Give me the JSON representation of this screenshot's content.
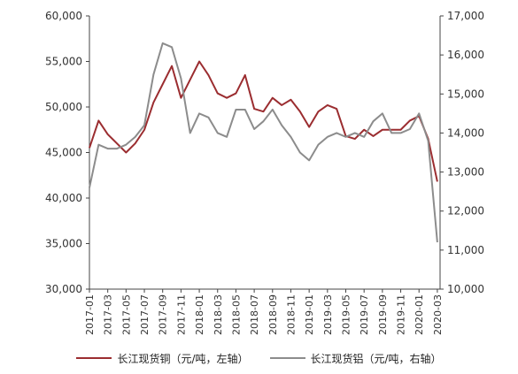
{
  "chart_data": {
    "type": "line",
    "x_ticks": [
      "2017-01",
      "2017-03",
      "2017-05",
      "2017-07",
      "2017-09",
      "2017-11",
      "2018-01",
      "2018-03",
      "2018-05",
      "2018-07",
      "2018-09",
      "2018-11",
      "2019-01",
      "2019-03",
      "2019-05",
      "2019-07",
      "2019-09",
      "2019-11",
      "2020-01",
      "2020-03"
    ],
    "y_left": {
      "min": 30000,
      "max": 60000,
      "ticks": [
        "30,000",
        "35,000",
        "40,000",
        "45,000",
        "50,000",
        "55,000",
        "60,000"
      ]
    },
    "y_right": {
      "min": 10000,
      "max": 17000,
      "ticks": [
        "10,000",
        "11,000",
        "12,000",
        "13,000",
        "14,000",
        "15,000",
        "16,000",
        "17,000"
      ]
    },
    "grid": false,
    "legend_position": "bottom",
    "series": [
      {
        "name": "长江现货铜（元/吨，左轴）",
        "axis": "left",
        "color": "#9b2d30",
        "x": [
          "2017-01",
          "2017-02",
          "2017-03",
          "2017-04",
          "2017-05",
          "2017-06",
          "2017-07",
          "2017-08",
          "2017-09",
          "2017-10",
          "2017-11",
          "2017-12",
          "2018-01",
          "2018-02",
          "2018-03",
          "2018-04",
          "2018-05",
          "2018-06",
          "2018-07",
          "2018-08",
          "2018-09",
          "2018-10",
          "2018-11",
          "2018-12",
          "2019-01",
          "2019-02",
          "2019-03",
          "2019-04",
          "2019-05",
          "2019-06",
          "2019-07",
          "2019-08",
          "2019-09",
          "2019-10",
          "2019-11",
          "2019-12",
          "2020-01",
          "2020-02",
          "2020-03"
        ],
        "values": [
          45500,
          48500,
          47000,
          46000,
          45000,
          46000,
          47500,
          50500,
          52500,
          54500,
          51000,
          53000,
          55000,
          53500,
          51500,
          51000,
          51500,
          53500,
          49800,
          49500,
          51000,
          50200,
          50800,
          49500,
          47800,
          49500,
          50200,
          49800,
          46800,
          46500,
          47500,
          46800,
          47500,
          47500,
          47500,
          48500,
          49000,
          46500,
          41800
        ]
      },
      {
        "name": "长江现货铝（元/吨，右轴）",
        "axis": "right",
        "color": "#8c8c8c",
        "x": [
          "2017-01",
          "2017-02",
          "2017-03",
          "2017-04",
          "2017-05",
          "2017-06",
          "2017-07",
          "2017-08",
          "2017-09",
          "2017-10",
          "2017-11",
          "2017-12",
          "2018-01",
          "2018-02",
          "2018-03",
          "2018-04",
          "2018-05",
          "2018-06",
          "2018-07",
          "2018-08",
          "2018-09",
          "2018-10",
          "2018-11",
          "2018-12",
          "2019-01",
          "2019-02",
          "2019-03",
          "2019-04",
          "2019-05",
          "2019-06",
          "2019-07",
          "2019-08",
          "2019-09",
          "2019-10",
          "2019-11",
          "2019-12",
          "2020-01",
          "2020-02",
          "2020-03"
        ],
        "values": [
          12600,
          13700,
          13600,
          13600,
          13700,
          13900,
          14200,
          15500,
          16300,
          16200,
          15400,
          14000,
          14500,
          14400,
          14000,
          13900,
          14600,
          14600,
          14100,
          14300,
          14600,
          14200,
          13900,
          13500,
          13300,
          13700,
          13900,
          14000,
          13900,
          14000,
          13900,
          14300,
          14500,
          14000,
          14000,
          14100,
          14500,
          13800,
          11200
        ]
      }
    ]
  }
}
